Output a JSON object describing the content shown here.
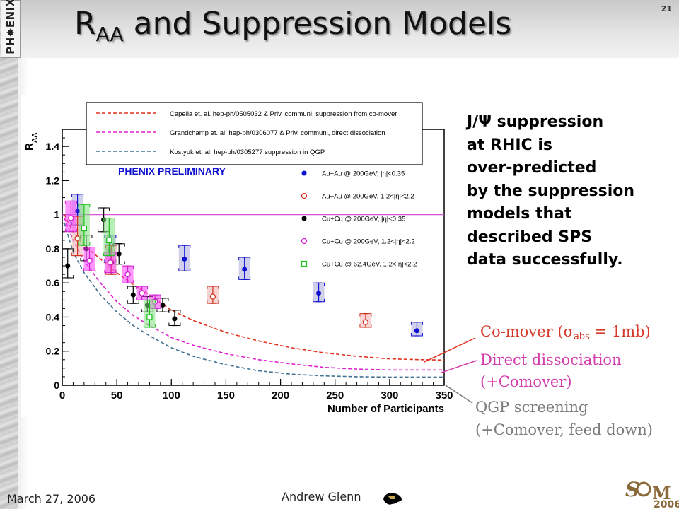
{
  "slide": {
    "number": "21",
    "title_main": "R",
    "title_sub": "AA",
    "title_rest": " and Suppression Models",
    "logo_text": "PH✸ENIX",
    "footer_date": "March 27, 2006",
    "footer_author": "Andrew Glenn",
    "conference_logo_text": "2006"
  },
  "side_text": [
    "J/Ψ suppression",
    "at RHIC is",
    "over-predicted",
    "by the suppression",
    "models that",
    "described SPS",
    "data successfully."
  ],
  "model_labels": {
    "comover_prefix": "Co-mover (",
    "comover_sigma": "σ",
    "comover_sub": "abs",
    "comover_suffix": " = 1mb)",
    "direct_line1": "Direct dissociation",
    "direct_line2": "(+Comover)",
    "qgp_line1": "QGP screening",
    "qgp_line2": "(+Comover, feed down)"
  },
  "colors": {
    "capella": "#e0301e",
    "grandchamp": "#e020d0",
    "kostyuk": "#3f7092",
    "auau_mid": "#1010d0",
    "auau_fwd": "#d23020",
    "cucu_mid": "#000000",
    "cucu_fwd": "#d020d0",
    "cucu62": "#20c020",
    "unity_line": "#d040d0",
    "arrow": "#e0301e",
    "arrow_direct": "#d33dae",
    "arrow_qgp": "#7c7c7c"
  },
  "chart_data": {
    "type": "scatter",
    "title": "PHENIX PRELIMINARY",
    "xlabel": "Number of Participants",
    "ylabel": "R",
    "ylabel_sub": "AA",
    "xlim": [
      0,
      350
    ],
    "ylim": [
      0,
      1.5
    ],
    "xticks": [
      0,
      50,
      100,
      150,
      200,
      250,
      300,
      350
    ],
    "yticks": [
      0,
      0.2,
      0.4,
      0.6,
      0.8,
      1,
      1.2,
      1.4
    ],
    "ytick_labels": [
      "0",
      "0.2",
      "0.4",
      "0.6",
      "0.8",
      "1",
      "1.2",
      "1.4"
    ],
    "reference_line": 1,
    "model_legend": [
      {
        "key": "capella",
        "text": "Capella et. al. hep-ph/0505032 & Priv. communi,  suppression from co-mover"
      },
      {
        "key": "grandchamp",
        "text": "Grandchamp et. al. hep-ph/0306077 & Priv. communi, direct dissociation"
      },
      {
        "key": "kostyuk",
        "text": "Kostyuk et. al. hep-ph/0305277 suppression in QGP"
      }
    ],
    "models": [
      {
        "key": "capella",
        "points": [
          [
            2,
            1.0
          ],
          [
            10,
            0.9
          ],
          [
            20,
            0.82
          ],
          [
            35,
            0.74
          ],
          [
            50,
            0.66
          ],
          [
            65,
            0.59
          ],
          [
            80,
            0.53
          ],
          [
            100,
            0.44
          ],
          [
            120,
            0.38
          ],
          [
            150,
            0.31
          ],
          [
            180,
            0.26
          ],
          [
            210,
            0.22
          ],
          [
            240,
            0.19
          ],
          [
            270,
            0.17
          ],
          [
            300,
            0.155
          ],
          [
            330,
            0.15
          ],
          [
            350,
            0.148
          ]
        ]
      },
      {
        "key": "grandchamp",
        "points": [
          [
            2,
            0.98
          ],
          [
            10,
            0.85
          ],
          [
            20,
            0.73
          ],
          [
            35,
            0.6
          ],
          [
            50,
            0.49
          ],
          [
            65,
            0.41
          ],
          [
            80,
            0.35
          ],
          [
            100,
            0.28
          ],
          [
            120,
            0.235
          ],
          [
            150,
            0.185
          ],
          [
            180,
            0.15
          ],
          [
            210,
            0.125
          ],
          [
            240,
            0.105
          ],
          [
            270,
            0.095
          ],
          [
            300,
            0.09
          ],
          [
            330,
            0.09
          ],
          [
            350,
            0.09
          ]
        ]
      },
      {
        "key": "kostyuk",
        "points": [
          [
            2,
            0.95
          ],
          [
            10,
            0.78
          ],
          [
            20,
            0.66
          ],
          [
            35,
            0.53
          ],
          [
            50,
            0.43
          ],
          [
            65,
            0.35
          ],
          [
            80,
            0.29
          ],
          [
            100,
            0.22
          ],
          [
            120,
            0.17
          ],
          [
            150,
            0.12
          ],
          [
            180,
            0.085
          ],
          [
            210,
            0.065
          ],
          [
            240,
            0.055
          ],
          [
            270,
            0.05
          ],
          [
            300,
            0.048
          ],
          [
            330,
            0.048
          ],
          [
            350,
            0.048
          ]
        ]
      }
    ],
    "data_legend": [
      {
        "key": "auau_mid",
        "marker": "filled",
        "text": "Au+Au @ 200GeV, |η|<0.35"
      },
      {
        "key": "auau_fwd",
        "marker": "open",
        "text": "Au+Au @ 200GeV, 1.2<|η|<2.2"
      },
      {
        "key": "cucu_mid",
        "marker": "filled",
        "text": "Cu+Cu @ 200GeV, |η|<0.35"
      },
      {
        "key": "cucu_fwd",
        "marker": "open",
        "text": "Cu+Cu @ 200GeV, 1.2<|η|<2.2"
      },
      {
        "key": "cucu62",
        "marker": "square",
        "text": "Cu+Cu @ 62.4GeV, 1.2<|η|<2.2"
      }
    ],
    "series": [
      {
        "key": "auau_mid",
        "marker": "filled",
        "box": "#aaaadd",
        "points": [
          [
            14,
            1.02,
            0.08,
            0.1
          ],
          [
            44,
            0.79,
            0.07,
            0.09
          ],
          [
            112,
            0.74,
            0.07,
            0.08
          ],
          [
            167,
            0.68,
            0.06,
            0.07
          ],
          [
            235,
            0.54,
            0.05,
            0.06
          ],
          [
            325,
            0.32,
            0.03,
            0.05
          ]
        ]
      },
      {
        "key": "auau_fwd",
        "marker": "open",
        "box": "#f0b0b0",
        "points": [
          [
            14,
            0.86,
            0.1,
            0.13
          ],
          [
            45,
            0.72,
            0.07,
            0.1
          ],
          [
            138,
            0.52,
            0.04,
            0.06
          ],
          [
            278,
            0.37,
            0.03,
            0.05
          ]
        ]
      },
      {
        "key": "cucu_mid",
        "marker": "filled",
        "box": "none",
        "points": [
          [
            5,
            0.7,
            0.07,
            0.1
          ],
          [
            22,
            0.8,
            0.07,
            0.08
          ],
          [
            38,
            0.97,
            0.07,
            0.07
          ],
          [
            52,
            0.77,
            0.06,
            0.06
          ],
          [
            65,
            0.53,
            0.05,
            0.05
          ],
          [
            78,
            0.47,
            0.04,
            0.05
          ],
          [
            92,
            0.47,
            0.04,
            0.04
          ],
          [
            103,
            0.39,
            0.04,
            0.05
          ]
        ]
      },
      {
        "key": "cucu_fwd",
        "marker": "open",
        "box": "#ff40ff",
        "points": [
          [
            8,
            0.98,
            0.08,
            0.1
          ],
          [
            25,
            0.73,
            0.06,
            0.08
          ],
          [
            44,
            0.72,
            0.06,
            0.06
          ],
          [
            60,
            0.65,
            0.05,
            0.05
          ],
          [
            73,
            0.54,
            0.04,
            0.04
          ],
          [
            85,
            0.49,
            0.04,
            0.04
          ]
        ]
      },
      {
        "key": "cucu62",
        "marker": "square",
        "box": "#80e080",
        "points": [
          [
            20,
            0.92,
            0.1,
            0.14
          ],
          [
            43,
            0.85,
            0.09,
            0.13
          ],
          [
            80,
            0.4,
            0.06,
            0.1
          ]
        ]
      }
    ]
  }
}
